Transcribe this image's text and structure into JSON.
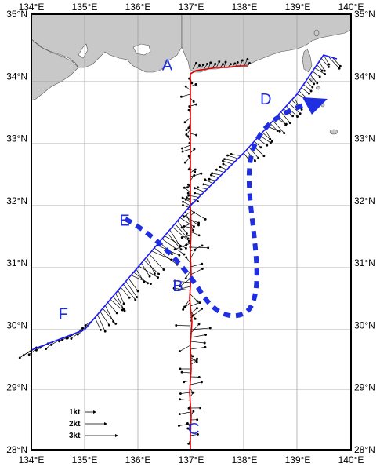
{
  "map": {
    "lon_ticks": [
      "134°E",
      "135°E",
      "136°E",
      "137°E",
      "138°E",
      "139°E",
      "140°E"
    ],
    "lat_ticks": [
      "35°N",
      "34°N",
      "33°N",
      "32°N",
      "31°N",
      "30°N",
      "29°N",
      "28°N"
    ],
    "lon_range": [
      134,
      140
    ],
    "lat_range": [
      28,
      35
    ],
    "points": [
      {
        "label": "A",
        "lon": 136.55,
        "lat": 34.1
      },
      {
        "label": "B",
        "lon": 136.75,
        "lat": 30.55
      },
      {
        "label": "C",
        "lon": 137.05,
        "lat": 28.25
      },
      {
        "label": "D",
        "lon": 138.4,
        "lat": 33.55
      },
      {
        "label": "E",
        "lon": 135.75,
        "lat": 31.6
      },
      {
        "label": "F",
        "lon": 134.6,
        "lat": 30.1
      }
    ],
    "colors": {
      "land": "#c8c8c8",
      "red_track": "#e00000",
      "blue_track": "#1a1aff",
      "current_arrow": "#1f2ee0",
      "vectors": "#000000"
    },
    "legend": [
      {
        "label": "1kt"
      },
      {
        "label": "2kt"
      },
      {
        "label": "3kt"
      }
    ]
  }
}
